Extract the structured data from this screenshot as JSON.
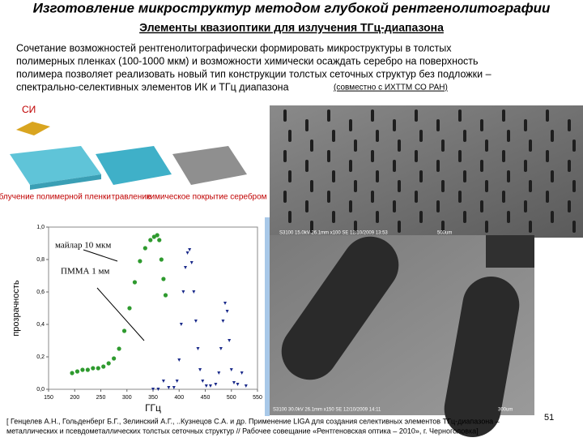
{
  "header": {
    "title": "Изготовление микроструктур методом глубокой рентгенолитографии",
    "subtitle": "Элементы квазиоптики для излучения ТГц-диапазона"
  },
  "intro": {
    "lines": [
      "Сочетание возможностей рентгенолитографически формировать микроструктуры в толстых",
      "полимерных пленках (100-1000 мкм) и возможности химически осаждать серебро на поверхность",
      "полимера позволяет реализовать новый тип конструкции толстых сеточных структур без подложки –",
      "спектрально-селективных элементов ИК и ТГц диапазона"
    ],
    "note": "(совместно с ИХТТМ СО РАН)"
  },
  "schematic": {
    "source": "СИ",
    "steps": [
      "облучение полимерной пленки",
      "травление",
      "химическое покрытие серебром"
    ]
  },
  "chart_data": {
    "type": "scatter",
    "y_label": "прозрачность",
    "x_label": "ГГц",
    "xlim": [
      150,
      550
    ],
    "ylim": [
      0,
      1
    ],
    "xticks": [
      150,
      200,
      250,
      300,
      350,
      400,
      450,
      500,
      550
    ],
    "yticks": [
      {
        "value": 0,
        "label": "0,0"
      },
      {
        "value": 0.2,
        "label": "0,2"
      },
      {
        "value": 0.4,
        "label": "0,4"
      },
      {
        "value": 0.6,
        "label": "0,6"
      },
      {
        "value": 0.8,
        "label": "0,8"
      },
      {
        "value": 1,
        "label": "1,0"
      }
    ],
    "annotations": [
      "майлар 10 мкм",
      "ПММА 1 мм"
    ],
    "series": [
      {
        "color": "#2e9a2e",
        "marker": "circle",
        "x": [
          195,
          205,
          215,
          225,
          235,
          245,
          255,
          265,
          275,
          285,
          295,
          305,
          315,
          325,
          335,
          345,
          352,
          358,
          362,
          366,
          370,
          374
        ],
        "values": [
          0.1,
          0.11,
          0.12,
          0.12,
          0.13,
          0.13,
          0.14,
          0.16,
          0.19,
          0.25,
          0.36,
          0.5,
          0.66,
          0.79,
          0.87,
          0.92,
          0.94,
          0.95,
          0.92,
          0.8,
          0.68,
          0.58
        ]
      },
      {
        "color": "#1a2a8a",
        "marker": "triangle",
        "x": [
          350,
          360,
          370,
          380,
          390,
          396,
          400,
          404,
          408,
          412,
          416,
          420,
          424,
          428,
          432,
          436,
          440,
          445,
          452,
          460,
          470,
          476,
          480,
          484,
          488,
          492,
          496,
          500,
          505,
          512,
          520,
          528
        ],
        "values": [
          0.0,
          0.0,
          0.05,
          0.01,
          0.01,
          0.05,
          0.18,
          0.4,
          0.6,
          0.75,
          0.84,
          0.86,
          0.78,
          0.6,
          0.42,
          0.25,
          0.12,
          0.05,
          0.02,
          0.02,
          0.03,
          0.1,
          0.25,
          0.42,
          0.53,
          0.48,
          0.3,
          0.12,
          0.04,
          0.03,
          0.1,
          0.02
        ]
      }
    ]
  },
  "sem_images": {
    "top": "S3100 15.0kV 26.1mm x100 SE 12/10/2009 13:53",
    "top_scale": "500um",
    "bottom": "S3100 30.0kV 26.1mm x150 SE 12/10/2009 14:11",
    "bottom_scale": "300um"
  },
  "reference": {
    "lines": [
      "[ Генцелев А.Н., Гольденберг Б.Г., Зелинский А.Г., ..Кузнецов С.А. и др. Применение LIGA  для создания селективных элементов ТГц-диапазона –",
      "металлических и псевдометаллических толстых сеточных структур // Рабочее совещание «Рентгеновская оптика – 2010», г. Черноголовка]"
    ]
  },
  "page_number": "51"
}
